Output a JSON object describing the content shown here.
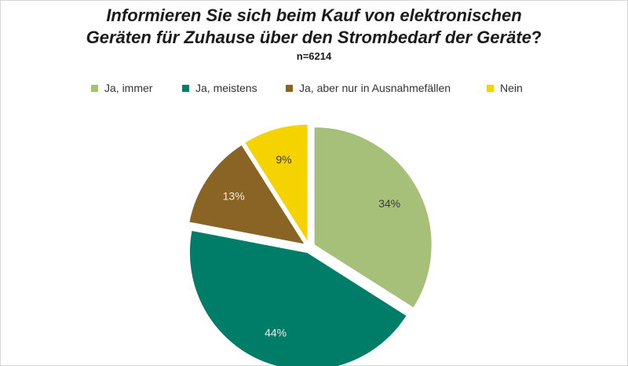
{
  "title_line1": "Informieren Sie sich beim Kauf von elektronischen",
  "title_line2": "Geräten für Zuhause über den Strombedarf der Geräte",
  "title_mark": "?",
  "sample": "n=6214",
  "chart_data": {
    "type": "pie",
    "title": "Informieren Sie sich beim Kauf von elektronischen Geräten für Zuhause über den Strombedarf der Geräte?",
    "subtitle": "n=6214",
    "legend_position": "top",
    "exploded": true,
    "series": [
      {
        "name": "Ja, immer",
        "value": 34,
        "label": "34%",
        "color": "#a6c07a",
        "label_color": "#3a3a3a"
      },
      {
        "name": "Ja, meistens",
        "value": 44,
        "label": "44%",
        "color": "#007d69",
        "label_color": "#e8f2ef"
      },
      {
        "name": "Ja, aber nur in Ausnahmefällen",
        "value": 13,
        "label": "13%",
        "color": "#8a6424",
        "label_color": "#f2ead9"
      },
      {
        "name": "Nein",
        "value": 9,
        "label": "9%",
        "color": "#f5d300",
        "label_color": "#3a3a3a"
      }
    ]
  }
}
